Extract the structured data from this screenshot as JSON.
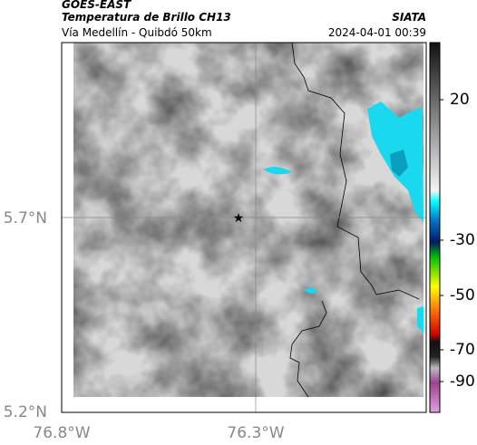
{
  "header": {
    "title": "GOES-EAST",
    "subtitle": "Temperatura de Brillo CH13",
    "source": "SIATA",
    "route": "Vía Medellín - Quibdó 50km",
    "timestamp": "2024-04-01 00:39"
  },
  "axes": {
    "lat_labels": [
      "5.7°N",
      "5.2°N"
    ],
    "lon_labels": [
      "76.8°W",
      "76.3°W"
    ]
  },
  "colorbar": {
    "labels": [
      "20",
      "-30",
      "-50",
      "-70",
      "-90"
    ]
  }
}
